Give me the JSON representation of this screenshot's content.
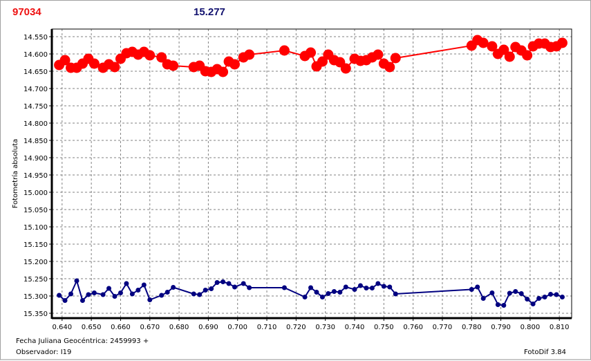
{
  "header": {
    "star_id": "97034",
    "mean_value": "15.277"
  },
  "footer": {
    "date_label": "Fecha Juliana Geocéntrica: 2459993 +",
    "observer_label": "Observador: I19",
    "version": "FotoDif 3.84"
  },
  "chart_data": {
    "type": "line",
    "ylabel": "Fotometría absoluta",
    "xlabel": "",
    "xlim": [
      0.6365,
      0.8142
    ],
    "ylim": [
      14.528,
      15.364
    ],
    "y_inverted": true,
    "grid": true,
    "xticks": [
      "0.640",
      "0.650",
      "0.660",
      "0.670",
      "0.680",
      "0.690",
      "0.700",
      "0.710",
      "0.720",
      "0.730",
      "0.740",
      "0.750",
      "0.760",
      "0.770",
      "0.780",
      "0.790",
      "0.800",
      "0.810"
    ],
    "yticks": [
      "14.550",
      "14.600",
      "14.650",
      "14.700",
      "14.750",
      "14.800",
      "14.850",
      "14.900",
      "14.950",
      "15.000",
      "15.050",
      "15.100",
      "15.150",
      "15.200",
      "15.250",
      "15.300",
      "15.350"
    ],
    "x": [
      0.639,
      0.641,
      0.643,
      0.645,
      0.647,
      0.649,
      0.651,
      0.654,
      0.656,
      0.658,
      0.66,
      0.662,
      0.664,
      0.666,
      0.668,
      0.67,
      0.674,
      0.676,
      0.678,
      0.685,
      0.687,
      0.689,
      0.691,
      0.693,
      0.695,
      0.697,
      0.699,
      0.702,
      0.704,
      0.716,
      0.723,
      0.725,
      0.727,
      0.729,
      0.731,
      0.733,
      0.735,
      0.737,
      0.74,
      0.742,
      0.744,
      0.746,
      0.748,
      0.75,
      0.752,
      0.754,
      0.78,
      0.782,
      0.784,
      0.787,
      0.789,
      0.791,
      0.793,
      0.795,
      0.797,
      0.799,
      0.801,
      0.803,
      0.805,
      0.807,
      0.809,
      0.811
    ],
    "series": [
      {
        "color": "#ff0000",
        "marker": "large-dot",
        "values": [
          14.632,
          14.618,
          14.64,
          14.64,
          14.628,
          14.614,
          14.628,
          14.64,
          14.63,
          14.638,
          14.614,
          14.598,
          14.594,
          14.602,
          14.594,
          14.604,
          14.61,
          14.63,
          14.634,
          14.638,
          14.634,
          14.65,
          14.652,
          14.644,
          14.652,
          14.622,
          14.63,
          14.61,
          14.602,
          14.59,
          14.606,
          14.596,
          14.636,
          14.622,
          14.602,
          14.618,
          14.624,
          14.642,
          14.614,
          14.62,
          14.618,
          14.61,
          14.602,
          14.628,
          14.638,
          14.612,
          14.576,
          14.56,
          14.568,
          14.578,
          14.6,
          14.588,
          14.608,
          14.58,
          14.59,
          14.604,
          14.578,
          14.57,
          14.57,
          14.58,
          14.578,
          14.568
        ]
      },
      {
        "color": "#000080",
        "marker": "small-dot",
        "values": [
          15.298,
          15.313,
          15.294,
          15.256,
          15.313,
          15.296,
          15.291,
          15.296,
          15.278,
          15.301,
          15.291,
          15.264,
          15.294,
          15.283,
          15.268,
          15.311,
          15.298,
          15.289,
          15.275,
          15.294,
          15.296,
          15.283,
          15.279,
          15.261,
          15.259,
          15.264,
          15.274,
          15.264,
          15.276,
          15.276,
          15.303,
          15.276,
          15.289,
          15.303,
          15.293,
          15.287,
          15.289,
          15.274,
          15.281,
          15.27,
          15.277,
          15.277,
          15.264,
          15.272,
          15.274,
          15.294,
          15.281,
          15.274,
          15.307,
          15.291,
          15.325,
          15.327,
          15.292,
          15.287,
          15.293,
          15.309,
          15.323,
          15.307,
          15.303,
          15.295,
          15.296,
          15.303
        ]
      }
    ]
  }
}
